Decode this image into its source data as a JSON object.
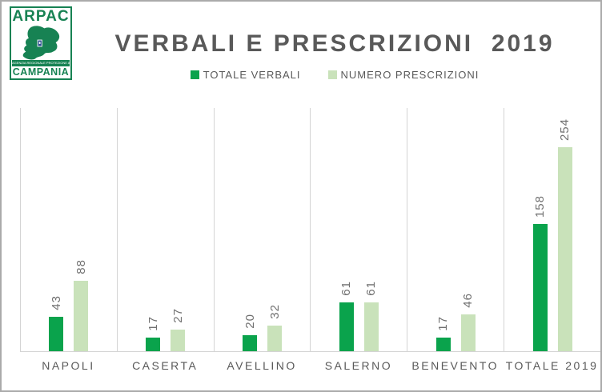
{
  "logo": {
    "top_text": "ARPAC",
    "band_text": "AGENZIA REGIONALE PROTEZIONE AMBIENTALE CAMPANIA",
    "bottom_text": "CAMPANIA",
    "green": "#178253",
    "emblem_blue": "#2a4d8f"
  },
  "title": "VERBALI E PRESCRIZIONI  2019",
  "chart_data": {
    "type": "bar",
    "title": "VERBALI E PRESCRIZIONI  2019",
    "categories": [
      "NAPOLI",
      "CASERTA",
      "AVELLINO",
      "SALERNO",
      "BENEVENTO",
      "TOTALE 2019"
    ],
    "series": [
      {
        "name": "TOTALE VERBALI",
        "color": "#0aa34c",
        "values": [
          43,
          17,
          20,
          61,
          17,
          158
        ]
      },
      {
        "name": "NUMERO PRESCRIZIONI",
        "color": "#c9e2ba",
        "values": [
          88,
          27,
          32,
          61,
          46,
          254
        ]
      }
    ],
    "xlabel": "",
    "ylabel": "",
    "ylim": [
      0,
      260
    ],
    "grid": "vertical category separators only",
    "legend_position": "top",
    "value_labels": "rotated 90deg above each bar",
    "axis_color": "#d4d4d4",
    "text_color": "#595959",
    "value_label_color": "#707070"
  }
}
